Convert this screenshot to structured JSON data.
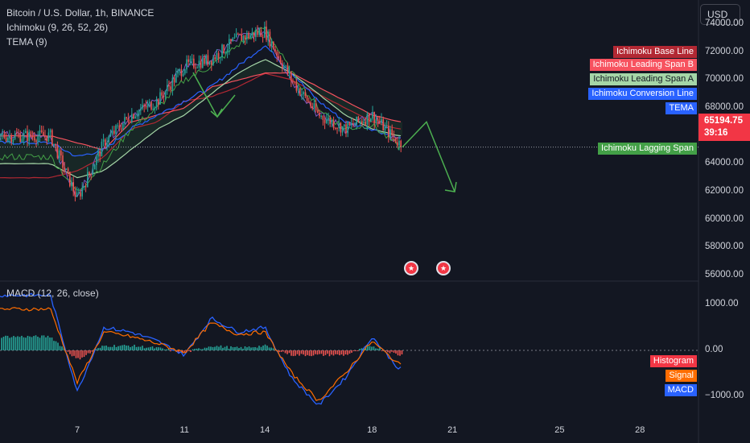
{
  "legend": {
    "symbol": "Bitcoin / U.S. Dollar, 1h, BINANCE",
    "ichimoku": "Ichimoku (9, 26, 52, 26)",
    "tema": "TEMA (9)",
    "macd": "MACD (12, 26, close)"
  },
  "currency": "USD",
  "colors": {
    "background": "#131722",
    "up": "#26a69a",
    "down": "#ef5350",
    "base_line": "#b22833",
    "span_b": "#f7525f",
    "span_a": "#a5d6a7",
    "conversion": "#2962ff",
    "tema": "#7e57c2",
    "lagging": "#43a047",
    "histogram": "#ef5350",
    "signal": "#ff6d00",
    "macd": "#2962ff",
    "arrow": "#4caf50"
  },
  "price_axis": {
    "ticks": [
      "74000.00",
      "72000.00",
      "70000.00",
      "68000.00",
      "66000.00",
      "64000.00",
      "62000.00",
      "60000.00",
      "58000.00",
      "56000.00"
    ]
  },
  "macd_axis": {
    "ticks": [
      "1000.00",
      "0.00",
      "−1000.00"
    ]
  },
  "time_axis": {
    "ticks": [
      "7",
      "11",
      "14",
      "18",
      "21",
      "25",
      "28"
    ]
  },
  "last_price": {
    "value": "65194.75",
    "countdown": "39:16"
  },
  "series_labels": {
    "base_line": "Ichimoku Base Line",
    "span_b": "Ichimoku Leading Span B",
    "span_a": "Ichimoku Leading Span A",
    "conversion": "Ichimoku Conversion Line",
    "tema": "TEMA",
    "lagging": "Ichimoku Lagging Span",
    "histogram": "Histogram",
    "signal": "Signal",
    "macd": "MACD"
  },
  "event_icons": [
    "flag-us-icon",
    "flag-us-icon"
  ],
  "chart_data": [
    {
      "type": "line",
      "title": "Bitcoin / U.S. Dollar, 1h, BINANCE",
      "ylim": [
        56000,
        75000
      ],
      "x": [
        "6",
        "7",
        "8",
        "9",
        "10",
        "11",
        "12",
        "13",
        "14",
        "15",
        "16",
        "17",
        "18",
        "19"
      ],
      "series": [
        {
          "name": "Ichimoku Base Line",
          "values": [
            63000,
            63500,
            64500,
            66500,
            67000,
            68500,
            68800,
            69500,
            70500,
            70000,
            69000,
            68000,
            67000,
            66500
          ]
        },
        {
          "name": "Ichimoku Leading Span B",
          "values": [
            66000,
            65500,
            65000,
            67000,
            67500,
            68000,
            69500,
            70000,
            70500,
            70500,
            69500,
            68500,
            67500,
            67000
          ]
        },
        {
          "name": "Ichimoku Leading Span A",
          "values": [
            64000,
            63000,
            63500,
            65000,
            66500,
            67500,
            69000,
            70500,
            71500,
            70500,
            69000,
            67500,
            66500,
            66000
          ]
        },
        {
          "name": "Ichimoku Conversion Line",
          "values": [
            65500,
            64500,
            65000,
            66500,
            67500,
            68500,
            69500,
            71000,
            72500,
            70500,
            68500,
            67000,
            66500,
            65800
          ]
        },
        {
          "name": "TEMA",
          "values": [
            66000,
            61500,
            65500,
            67500,
            68500,
            71000,
            71500,
            73000,
            73500,
            70000,
            67500,
            66500,
            67500,
            65500
          ]
        },
        {
          "name": "Ichimoku Lagging Span",
          "values": [
            64500,
            62000,
            64000,
            66500,
            68000,
            70000,
            71000,
            72500,
            73800,
            70500,
            68000,
            66500,
            66800,
            65200
          ]
        }
      ],
      "projection": {
        "x": [
          "19",
          "20",
          "21"
        ],
        "values": [
          65194.75,
          67000,
          62000
        ]
      },
      "last_price": 65194.75
    },
    {
      "type": "line",
      "title": "MACD (12, 26, close)",
      "ylim": [
        -1300,
        1300
      ],
      "x": [
        "6",
        "7",
        "8",
        "9",
        "10",
        "11",
        "12",
        "13",
        "14",
        "15",
        "16",
        "17",
        "18",
        "19"
      ],
      "series": [
        {
          "name": "MACD",
          "values": [
            1200,
            -900,
            500,
            400,
            200,
            -100,
            700,
            400,
            500,
            -600,
            -1200,
            -600,
            300,
            -400
          ]
        },
        {
          "name": "Signal",
          "values": [
            900,
            -700,
            400,
            300,
            150,
            -50,
            600,
            350,
            400,
            -500,
            -1100,
            -500,
            200,
            -300
          ]
        },
        {
          "name": "Histogram",
          "values": [
            300,
            -200,
            100,
            100,
            50,
            -50,
            100,
            50,
            100,
            -100,
            -100,
            -100,
            100,
            -100
          ]
        }
      ]
    }
  ]
}
